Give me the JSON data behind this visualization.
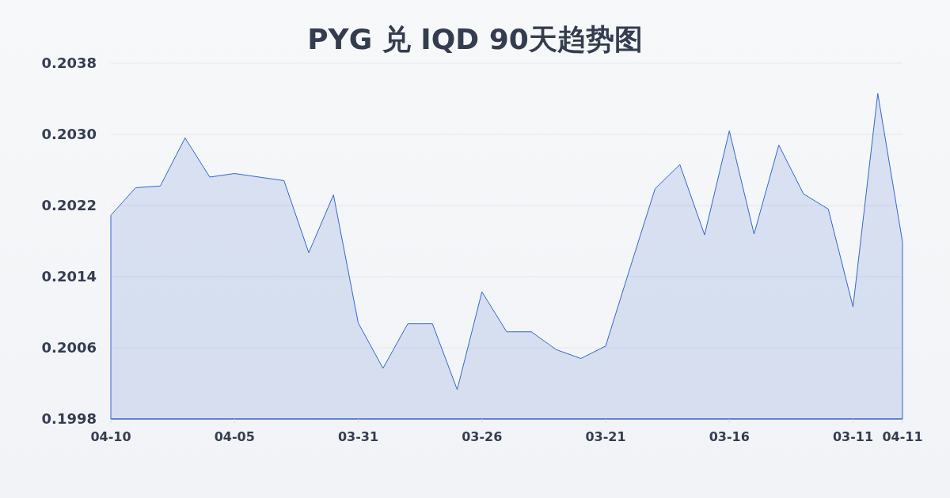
{
  "chart_data": {
    "type": "area",
    "title": "PYG 兑 IQD 90天趋势图",
    "categories": [
      "04-10",
      null,
      null,
      null,
      null,
      "04-05",
      null,
      null,
      null,
      null,
      "03-31",
      null,
      null,
      null,
      null,
      "03-26",
      null,
      null,
      null,
      null,
      "03-21",
      null,
      null,
      null,
      null,
      "03-16",
      null,
      null,
      null,
      null,
      "03-11",
      null,
      "04-11"
    ],
    "series": [
      {
        "color": "#3366cc",
        "values": [
          0.20209,
          0.2024,
          0.20242,
          0.20296,
          0.20252,
          0.20256,
          0.20252,
          0.20248,
          0.20167,
          0.20232,
          0.20088,
          0.20037,
          0.20087,
          0.20087,
          0.20013,
          0.20123,
          0.20078,
          0.20078,
          0.20058,
          0.20048,
          0.20062,
          0.20151,
          0.20239,
          0.20266,
          0.20187,
          0.20304,
          0.20188,
          0.20288,
          0.20233,
          0.20216,
          0.20106,
          0.20346,
          0.20179
        ]
      }
    ],
    "ylim": [
      0.1998,
      0.2038
    ],
    "yticks": [
      0.1998,
      0.2006,
      0.2014,
      0.2022,
      {
        "value": 0.203,
        "label": "0.2030"
      },
      0.2038
    ],
    "grid": "y"
  }
}
